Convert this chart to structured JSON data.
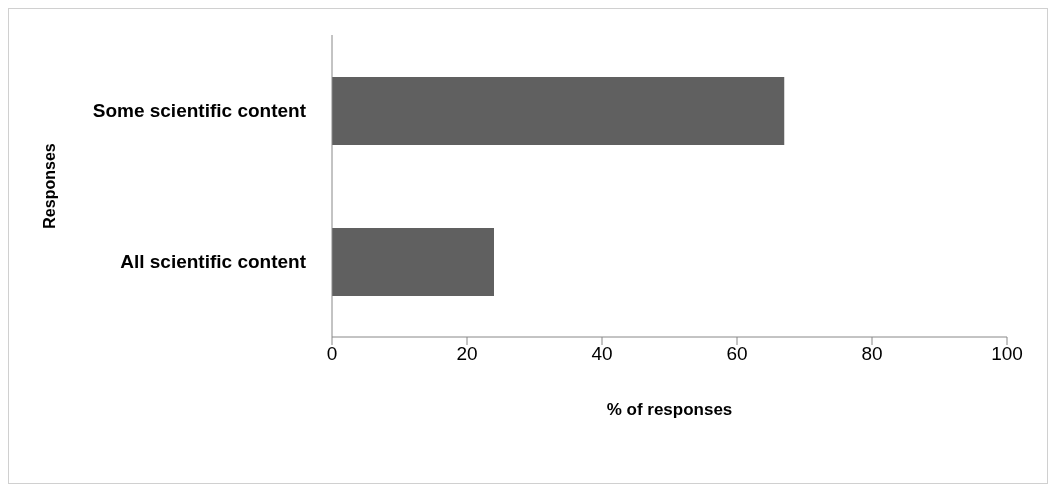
{
  "chart_data": {
    "type": "bar",
    "orientation": "horizontal",
    "xlabel": "% of responses",
    "ylabel": "Responses",
    "categories": [
      "Some scientific content",
      "All scientific content"
    ],
    "values": [
      67,
      24
    ],
    "color": "#606060",
    "xlim": [
      0,
      100
    ],
    "xticks": [
      0,
      20,
      40,
      60,
      80,
      100
    ],
    "grid": false
  }
}
